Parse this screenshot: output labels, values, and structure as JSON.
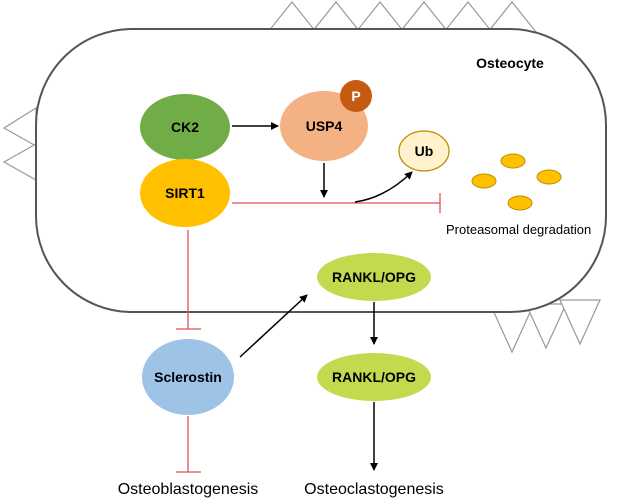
{
  "colors": {
    "cell_border": "#555555",
    "ck2": "#70ad47",
    "sirt1": "#ffc000",
    "usp4": "#f4b183",
    "phospho": "#c55a11",
    "ub_fill": "#fff2cc",
    "ub_stroke": "#bf9000",
    "proteasome": "#ffc000",
    "rankl": "#c5d94f",
    "sclerostin": "#9dc3e6",
    "inhibit_line": "#e05050",
    "arrow": "#000000"
  },
  "cell": {
    "title": "Osteocyte"
  },
  "nodes": {
    "ck2": "CK2",
    "usp4": "USP4",
    "phospho": "P",
    "sirt1": "SIRT1",
    "ub": "Ub",
    "proteasomal": "Proteasomal degradation",
    "rankl_inside": "RANKL/OPG",
    "rankl_outside": "RANKL/OPG",
    "sclerostin": "Sclerostin"
  },
  "outcomes": {
    "osteoblastogenesis": "Osteoblastogenesis",
    "osteoclastogenesis": "Osteoclastogenesis"
  }
}
